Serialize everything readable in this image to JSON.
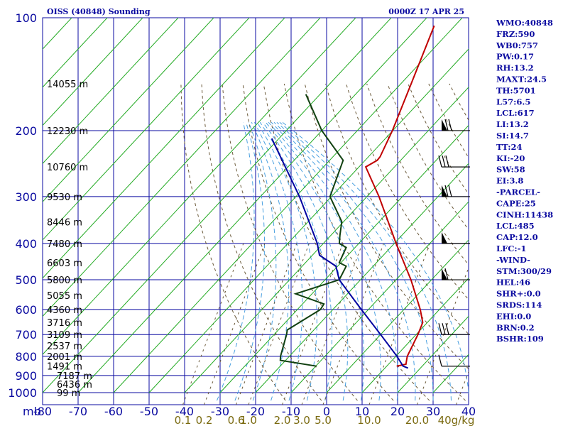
{
  "header": {
    "station": "OISS (40848) Sounding",
    "time": "0000Z 17 APR 25"
  },
  "chart_data": {
    "type": "line",
    "pressure_levels": [
      100,
      200,
      300,
      400,
      500,
      600,
      700,
      800,
      900,
      1000
    ],
    "pressure_ticks": [
      "100",
      "200",
      "300",
      "400",
      "500",
      "600",
      "700",
      "800",
      "900",
      "1000"
    ],
    "temperature_ticks": [
      "-80",
      "-70",
      "-60",
      "-50",
      "-40",
      "-30",
      "-20",
      "-10",
      "0",
      "10",
      "20",
      "30",
      "40"
    ],
    "xlim_c": [
      -80,
      40
    ],
    "y_unit_label": "mb",
    "mixing_ratio_labels": [
      {
        "text": "0.1",
        "t": -40.5
      },
      {
        "text": "0.2",
        "t": -34.5
      },
      {
        "text": "0.6",
        "t": -25.5
      },
      {
        "text": "1.0",
        "t": -22
      },
      {
        "text": "2.0",
        "t": -12.5
      },
      {
        "text": "3.0",
        "t": -7
      },
      {
        "text": "5.0",
        "t": -1
      },
      {
        "text": "10.0",
        "t": 12
      },
      {
        "text": "20.0",
        "t": 25.5
      },
      {
        "text": "40g/kg",
        "t": 36.5
      }
    ],
    "height_labels": [
      {
        "p": 150,
        "text": "14055 m"
      },
      {
        "p": 200,
        "text": "12230 m"
      },
      {
        "p": 250,
        "text": "10760 m"
      },
      {
        "p": 300,
        "text": "9530 m"
      },
      {
        "p": 350,
        "text": "8446 m"
      },
      {
        "p": 400,
        "text": "7480 m"
      },
      {
        "p": 450,
        "text": "6603 m"
      },
      {
        "p": 500,
        "text": "5800 m"
      },
      {
        "p": 550,
        "text": "5055 m"
      },
      {
        "p": 600,
        "text": "4360 m"
      },
      {
        "p": 650,
        "text": "3716 m"
      },
      {
        "p": 700,
        "text": "3109 m"
      },
      {
        "p": 750,
        "text": "2537 m"
      },
      {
        "p": 800,
        "text": "2001 m"
      },
      {
        "p": 850,
        "text": "1491 m"
      },
      {
        "p": 900,
        "text": "7187 m"
      },
      {
        "p": 950,
        "text": "6436 m"
      },
      {
        "p": 1000,
        "text": "99 m"
      }
    ],
    "series": [
      {
        "name": "temperature",
        "color": "#c00000",
        "points": [
          [
            105,
            -65.8
          ],
          [
            150,
            -57.1
          ],
          [
            200,
            -50.1
          ],
          [
            235,
            -46.7
          ],
          [
            240,
            -46.6
          ],
          [
            250,
            -48.1
          ],
          [
            300,
            -36.6
          ],
          [
            400,
            -19.5
          ],
          [
            500,
            -5.8
          ],
          [
            600,
            4.6
          ],
          [
            650,
            8.7
          ],
          [
            700,
            10.5
          ],
          [
            800,
            13.2
          ],
          [
            840,
            14.9
          ],
          [
            850,
            12.8
          ]
        ]
      },
      {
        "name": "dewpoint",
        "color": "#104010",
        "points": [
          [
            160,
            -84
          ],
          [
            200,
            -70
          ],
          [
            240,
            -56.2
          ],
          [
            300,
            -50.4
          ],
          [
            350,
            -40.5
          ],
          [
            380,
            -37.5
          ],
          [
            400,
            -35.5
          ],
          [
            410,
            -32.5
          ],
          [
            450,
            -30.5
          ],
          [
            460,
            -27.6
          ],
          [
            500,
            -26
          ],
          [
            545,
            -34.6
          ],
          [
            580,
            -24
          ],
          [
            600,
            -23.5
          ],
          [
            680,
            -27.5
          ],
          [
            700,
            -26.5
          ],
          [
            800,
            -22.5
          ],
          [
            820,
            -21.5
          ],
          [
            850,
            -9.8
          ]
        ]
      },
      {
        "name": "parcel",
        "color": "#0000a0",
        "points": [
          [
            210,
            -82
          ],
          [
            300,
            -59
          ],
          [
            400,
            -41.7
          ],
          [
            430,
            -38
          ],
          [
            460,
            -30.5
          ],
          [
            500,
            -26
          ],
          [
            600,
            -12
          ],
          [
            700,
            0
          ],
          [
            800,
            10.3
          ],
          [
            850,
            14.6
          ],
          [
            860,
            16.5
          ]
        ]
      }
    ],
    "wind_barbs": [
      {
        "p": 200,
        "barbs": 2,
        "pennants": 1
      },
      {
        "p": 250,
        "barbs": 3,
        "pennants": 0
      },
      {
        "p": 300,
        "barbs": 2,
        "pennants": 1
      },
      {
        "p": 400,
        "barbs": 0,
        "pennants": 1
      },
      {
        "p": 500,
        "barbs": 1,
        "pennants": 1
      },
      {
        "p": 700,
        "barbs": 3,
        "pennants": 0
      },
      {
        "p": 850,
        "barbs": 1,
        "pennants": 0
      }
    ]
  },
  "indices": [
    "WMO:40848",
    "FRZ:590",
    "WB0:757",
    "PW:0.17",
    "RH:13.2",
    "MAXT:24.5",
    "TH:5701",
    "L57:6.5",
    "LCL:617",
    "LI:13.2",
    "SI:14.7",
    "TT:24",
    "KI:-20",
    "SW:58",
    "EI:3.8",
    "-PARCEL-",
    "CAPE:25",
    "CINH:11438",
    "LCL:485",
    "CAP:12.0",
    "LFC:-1",
    "-WIND-",
    "STM:300/29",
    "HEL:46",
    "SHR+:0.0",
    "SRDS:114",
    "EHI:0.0",
    "BRN:0.2",
    "BSHR:109"
  ]
}
